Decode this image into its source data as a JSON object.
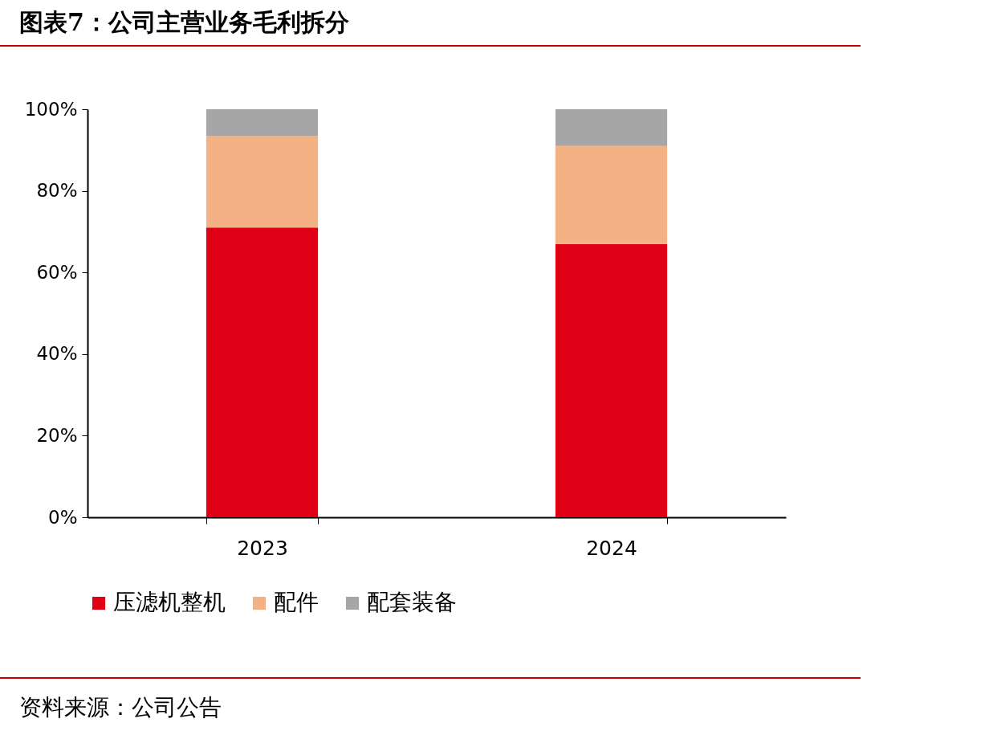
{
  "chart_data": {
    "type": "bar",
    "title": "图表7：公司主营业务毛利拆分",
    "categories": [
      "2023",
      "2024"
    ],
    "stacked": true,
    "series": [
      {
        "name": "压滤机整机",
        "color": "#e00016",
        "values": [
          71,
          67
        ]
      },
      {
        "name": "配件",
        "color": "#f4b183",
        "values": [
          22.5,
          24
        ]
      },
      {
        "name": "配套装备",
        "color": "#a6a6a6",
        "values": [
          6.5,
          9
        ]
      }
    ],
    "ylim": [
      0,
      100
    ],
    "yticks": [
      {
        "value": 0,
        "label": "0%"
      },
      {
        "value": 20,
        "label": "20%"
      },
      {
        "value": 40,
        "label": "40%"
      },
      {
        "value": 60,
        "label": "60%"
      },
      {
        "value": 80,
        "label": "80%"
      },
      {
        "value": 100,
        "label": "100%"
      }
    ],
    "grid": false,
    "legend": "bottom",
    "annotations": [
      "资料来源：公司公告"
    ]
  }
}
